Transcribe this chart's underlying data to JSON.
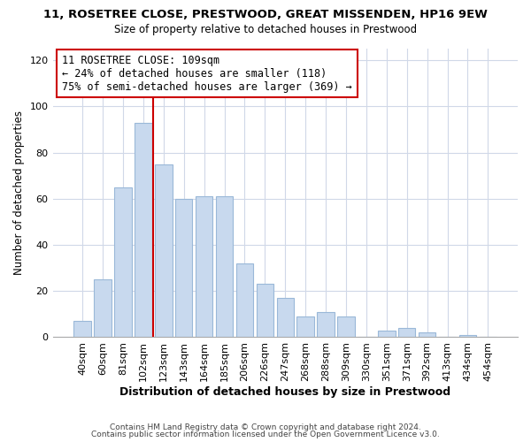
{
  "title1": "11, ROSETREE CLOSE, PRESTWOOD, GREAT MISSENDEN, HP16 9EW",
  "title2": "Size of property relative to detached houses in Prestwood",
  "xlabel": "Distribution of detached houses by size in Prestwood",
  "ylabel": "Number of detached properties",
  "bar_labels": [
    "40sqm",
    "60sqm",
    "81sqm",
    "102sqm",
    "123sqm",
    "143sqm",
    "164sqm",
    "185sqm",
    "206sqm",
    "226sqm",
    "247sqm",
    "268sqm",
    "288sqm",
    "309sqm",
    "330sqm",
    "351sqm",
    "371sqm",
    "392sqm",
    "413sqm",
    "434sqm",
    "454sqm"
  ],
  "bar_heights": [
    7,
    25,
    65,
    93,
    75,
    60,
    61,
    61,
    32,
    23,
    17,
    9,
    11,
    9,
    0,
    3,
    4,
    2,
    0,
    1,
    0
  ],
  "bar_color": "#c8d9ee",
  "bar_edge_color": "#9ab8d8",
  "vline_color": "#cc0000",
  "annotation_text": "11 ROSETREE CLOSE: 109sqm\n← 24% of detached houses are smaller (118)\n75% of semi-detached houses are larger (369) →",
  "annotation_box_color": "#ffffff",
  "annotation_box_edge": "#cc0000",
  "ylim": [
    0,
    125
  ],
  "yticks": [
    0,
    20,
    40,
    60,
    80,
    100,
    120
  ],
  "footer1": "Contains HM Land Registry data © Crown copyright and database right 2024.",
  "footer2": "Contains public sector information licensed under the Open Government Licence v3.0.",
  "background_color": "#ffffff",
  "plot_background": "#ffffff",
  "grid_color": "#d0d8e8"
}
